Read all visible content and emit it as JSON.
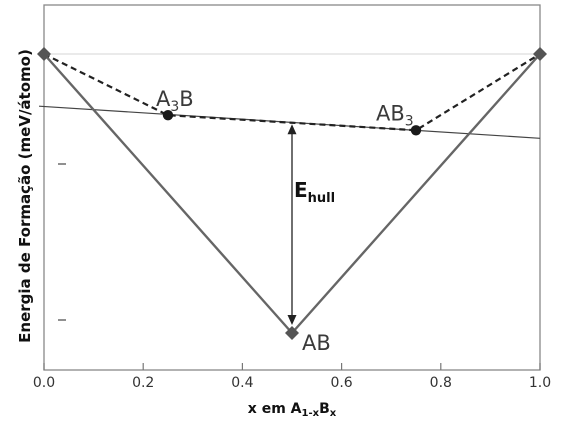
{
  "chart_data": {
    "type": "line",
    "xlabel_parts": [
      "x em A",
      "1-x",
      "B",
      "x"
    ],
    "ylabel": "Energia de Formação (meV/átomo)",
    "xlim": [
      0.0,
      1.0
    ],
    "x_ticks": [
      "0.0",
      "0.2",
      "0.4",
      "0.6",
      "0.8",
      "1.0"
    ],
    "points": [
      {
        "label": "",
        "x": 0.0,
        "marker": "diamond",
        "energy": 0
      },
      {
        "label_main": "A",
        "label_sub": "3",
        "label_end": "B",
        "x": 0.25,
        "marker": "circle",
        "energy": -61
      },
      {
        "label_main": "AB",
        "label_sub": "",
        "label_end": "",
        "x": 0.5,
        "marker": "diamond",
        "energy": -278
      },
      {
        "label_main": "AB",
        "label_sub": "3",
        "label_end": "",
        "x": 0.75,
        "marker": "circle",
        "energy": -76
      },
      {
        "label": "",
        "x": 1.0,
        "marker": "diamond",
        "energy": 0
      }
    ],
    "hull_line": {
      "x": [
        0.0,
        0.5,
        1.0
      ],
      "energy": [
        0,
        -278,
        0
      ],
      "style": "solid",
      "color": "#666666"
    },
    "dashed_hull": {
      "x": [
        0.0,
        0.25,
        0.75,
        1.0
      ],
      "energy": [
        0,
        -61,
        -76,
        0
      ],
      "style": "dashed",
      "color": "#222222"
    },
    "reference_line": {
      "x": [
        -0.01,
        1.0
      ],
      "energy": [
        -52,
        -84
      ],
      "style": "solid",
      "color": "#444444"
    },
    "annotation": {
      "text_main": "E",
      "text_sub": "hull",
      "x": 0.5,
      "energy_from": -278,
      "energy_to": -68
    }
  }
}
